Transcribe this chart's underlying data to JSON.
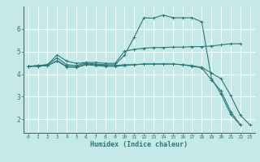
{
  "xlabel": "Humidex (Indice chaleur)",
  "background_color": "#c5e8e8",
  "grid_color": "#ffffff",
  "line_color": "#2e7878",
  "xlim": [
    -0.5,
    23.5
  ],
  "ylim": [
    1.4,
    7.0
  ],
  "x_ticks": [
    0,
    1,
    2,
    3,
    4,
    5,
    6,
    7,
    8,
    9,
    10,
    11,
    12,
    13,
    14,
    15,
    16,
    17,
    18,
    19,
    20,
    21,
    22,
    23
  ],
  "y_ticks": [
    2,
    3,
    4,
    5,
    6
  ],
  "lines": [
    {
      "x": [
        0,
        1,
        2,
        3,
        4,
        5,
        6,
        7,
        8,
        9,
        10,
        11,
        12,
        13,
        14,
        15,
        16,
        17,
        18,
        19,
        20,
        21,
        22
      ],
      "y": [
        4.35,
        4.38,
        4.42,
        4.85,
        4.58,
        4.48,
        4.52,
        4.52,
        4.48,
        4.48,
        5.02,
        5.1,
        5.15,
        5.18,
        5.18,
        5.2,
        5.2,
        5.22,
        5.22,
        5.25,
        5.3,
        5.35,
        5.35
      ]
    },
    {
      "x": [
        0,
        1,
        2,
        3,
        4,
        5,
        6,
        7,
        8,
        9,
        10,
        11,
        12,
        13,
        14,
        15,
        16,
        17,
        18,
        19,
        20,
        21,
        22
      ],
      "y": [
        4.35,
        4.38,
        4.42,
        4.72,
        4.42,
        4.38,
        4.5,
        4.45,
        4.42,
        4.42,
        4.85,
        5.65,
        6.5,
        6.48,
        6.62,
        6.5,
        6.5,
        6.5,
        6.32,
        3.82,
        3.12,
        2.22,
        1.75
      ]
    },
    {
      "x": [
        0,
        1,
        2,
        3,
        4,
        5,
        6,
        7,
        8,
        9,
        10,
        11,
        12,
        13,
        14,
        15,
        16,
        17,
        18,
        19,
        20,
        21,
        22,
        23
      ],
      "y": [
        4.35,
        4.35,
        4.38,
        4.6,
        4.35,
        4.32,
        4.45,
        4.42,
        4.38,
        4.38,
        4.42,
        4.42,
        4.45,
        4.45,
        4.45,
        4.45,
        4.42,
        4.38,
        4.3,
        4.05,
        3.8,
        3.05,
        2.18,
        1.75
      ]
    },
    {
      "x": [
        0,
        1,
        2,
        3,
        4,
        5,
        6,
        7,
        8,
        9,
        10,
        11,
        12,
        13,
        14,
        15,
        16,
        17,
        18,
        19,
        20,
        21,
        22
      ],
      "y": [
        4.35,
        4.35,
        4.38,
        4.58,
        4.32,
        4.3,
        4.42,
        4.38,
        4.35,
        4.35,
        4.38,
        4.42,
        4.45,
        4.45,
        4.45,
        4.45,
        4.42,
        4.35,
        4.28,
        3.75,
        3.25,
        2.35,
        1.75
      ]
    }
  ]
}
